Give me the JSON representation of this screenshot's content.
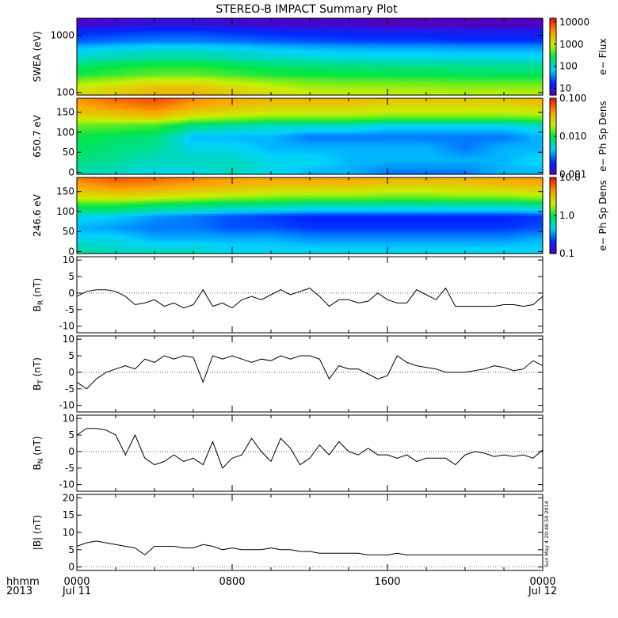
{
  "title": "STEREO-B IMPACT Summary Plot",
  "timestamp": "Sun May  4 20:48:50 2014",
  "x_axis": {
    "row1_label": "hhmm",
    "row2_label": "2013",
    "ticks": [
      {
        "hour": 0,
        "time": "0000",
        "date": "Jul 11"
      },
      {
        "hour": 8,
        "time": "0800",
        "date": ""
      },
      {
        "hour": 16,
        "time": "1600",
        "date": ""
      },
      {
        "hour": 24,
        "time": "0000",
        "date": "Jul 12"
      }
    ],
    "range_hours": [
      0,
      24
    ]
  },
  "colors": {
    "line": "#000000",
    "background": "#ffffff"
  },
  "chart_data": [
    {
      "type": "heatmap",
      "id": "swea",
      "ylabel": "SWEA (eV)",
      "yscale": "log",
      "ylim": [
        90,
        2000
      ],
      "yticks": [
        {
          "v": 100,
          "label": "100"
        },
        {
          "v": 1000,
          "label": "1000"
        }
      ],
      "colorbar": {
        "label": "e− Flux",
        "scale": "log",
        "range": [
          5,
          15000
        ],
        "ticks": [
          {
            "v": 10000,
            "label": "10000"
          },
          {
            "v": 1000,
            "label": "1000"
          },
          {
            "v": 100,
            "label": "100"
          },
          {
            "v": 10,
            "label": "10"
          }
        ]
      },
      "x_hours": [
        0,
        2,
        4,
        6,
        8,
        10,
        12,
        14,
        16,
        18,
        20,
        22,
        24
      ],
      "y_values": [
        100,
        200,
        400,
        800,
        1600
      ],
      "z": [
        [
          1300,
          1800,
          2600,
          2600,
          1800,
          1300,
          1000,
          950,
          950,
          900,
          850,
          850,
          850
        ],
        [
          320,
          420,
          520,
          520,
          420,
          340,
          300,
          280,
          270,
          260,
          250,
          240,
          240
        ],
        [
          110,
          130,
          150,
          150,
          130,
          110,
          100,
          95,
          90,
          90,
          85,
          85,
          85
        ],
        [
          28,
          32,
          36,
          36,
          32,
          28,
          25,
          23,
          22,
          22,
          20,
          20,
          20
        ],
        [
          6,
          7,
          8,
          8,
          7,
          6,
          6,
          6,
          5,
          5,
          5,
          5,
          5
        ]
      ]
    },
    {
      "type": "heatmap",
      "id": "pad650",
      "ylabel": "650.7 eV",
      "yscale": "linear",
      "ylim": [
        -5,
        185
      ],
      "yticks": [
        {
          "v": 0,
          "label": "0"
        },
        {
          "v": 50,
          "label": "50"
        },
        {
          "v": 100,
          "label": "100"
        },
        {
          "v": 150,
          "label": "150"
        }
      ],
      "colorbar": {
        "label": "e− Ph Sp Dens",
        "scale": "log",
        "range": [
          0.001,
          0.1
        ],
        "ticks": [
          {
            "v": 0.1,
            "label": "0.100"
          },
          {
            "v": 0.01,
            "label": "0.010"
          },
          {
            "v": 0.001,
            "label": "0.001"
          }
        ]
      },
      "x_hours": [
        0,
        2,
        4,
        6,
        8,
        10,
        12,
        14,
        16,
        18,
        20,
        22,
        24
      ],
      "y_values": [
        0,
        30,
        60,
        90,
        120,
        150,
        180
      ],
      "z": [
        [
          0.006,
          0.006,
          0.005,
          0.005,
          0.006,
          0.005,
          0.004,
          0.004,
          0.003,
          0.003,
          0.003,
          0.004,
          0.004
        ],
        [
          0.008,
          0.007,
          0.006,
          0.006,
          0.006,
          0.005,
          0.005,
          0.004,
          0.004,
          0.004,
          0.004,
          0.004,
          0.005
        ],
        [
          0.009,
          0.008,
          0.007,
          0.005,
          0.005,
          0.004,
          0.004,
          0.004,
          0.004,
          0.004,
          0.003,
          0.004,
          0.004
        ],
        [
          0.01,
          0.009,
          0.008,
          0.004,
          0.004,
          0.004,
          0.003,
          0.003,
          0.003,
          0.003,
          0.003,
          0.003,
          0.004
        ],
        [
          0.015,
          0.014,
          0.013,
          0.008,
          0.007,
          0.006,
          0.006,
          0.006,
          0.005,
          0.005,
          0.005,
          0.005,
          0.006
        ],
        [
          0.03,
          0.035,
          0.04,
          0.028,
          0.025,
          0.022,
          0.022,
          0.022,
          0.02,
          0.02,
          0.02,
          0.02,
          0.022
        ],
        [
          0.045,
          0.06,
          0.07,
          0.05,
          0.04,
          0.035,
          0.035,
          0.035,
          0.03,
          0.03,
          0.03,
          0.03,
          0.035
        ]
      ]
    },
    {
      "type": "heatmap",
      "id": "pad246",
      "ylabel": "246.6 eV",
      "yscale": "linear",
      "ylim": [
        -5,
        185
      ],
      "yticks": [
        {
          "v": 0,
          "label": "0"
        },
        {
          "v": 50,
          "label": "50"
        },
        {
          "v": 100,
          "label": "100"
        },
        {
          "v": 150,
          "label": "150"
        }
      ],
      "colorbar": {
        "label": "e− Ph Sp Dens",
        "scale": "log",
        "range": [
          0.1,
          10
        ],
        "ticks": [
          {
            "v": 10,
            "label": "10.0"
          },
          {
            "v": 1,
            "label": "1.0"
          },
          {
            "v": 0.1,
            "label": "0.1"
          }
        ]
      },
      "x_hours": [
        0,
        2,
        4,
        6,
        8,
        10,
        12,
        14,
        16,
        18,
        20,
        22,
        24
      ],
      "y_values": [
        0,
        30,
        60,
        90,
        120,
        150,
        180
      ],
      "z": [
        [
          0.7,
          0.6,
          0.6,
          0.6,
          0.5,
          0.5,
          0.5,
          0.5,
          0.5,
          0.5,
          0.5,
          0.5,
          0.5
        ],
        [
          0.5,
          0.5,
          0.4,
          0.4,
          0.4,
          0.4,
          0.35,
          0.35,
          0.35,
          0.35,
          0.35,
          0.35,
          0.4
        ],
        [
          0.4,
          0.35,
          0.3,
          0.3,
          0.25,
          0.25,
          0.22,
          0.22,
          0.22,
          0.22,
          0.22,
          0.22,
          0.25
        ],
        [
          0.5,
          0.45,
          0.35,
          0.3,
          0.25,
          0.22,
          0.2,
          0.2,
          0.2,
          0.2,
          0.2,
          0.2,
          0.22
        ],
        [
          1.2,
          1.2,
          1.0,
          0.9,
          0.8,
          0.8,
          0.7,
          0.7,
          0.7,
          0.7,
          0.7,
          0.7,
          0.8
        ],
        [
          3.0,
          3.5,
          3.2,
          2.8,
          2.5,
          2.2,
          2.2,
          2.2,
          2.0,
          2.0,
          2.2,
          2.2,
          2.5
        ],
        [
          5.0,
          6.5,
          6.0,
          5.0,
          4.5,
          4.0,
          4.0,
          4.0,
          3.5,
          3.5,
          3.5,
          4.0,
          4.5
        ]
      ]
    },
    {
      "type": "line",
      "id": "br",
      "ylabel_main": "B",
      "ylabel_sub": "R",
      "ylabel_unit": " (nT)",
      "ylim": [
        -12,
        11
      ],
      "yticks": [
        {
          "v": -10,
          "label": "-10"
        },
        {
          "v": -5,
          "label": "-5"
        },
        {
          "v": 0,
          "label": "0"
        },
        {
          "v": 5,
          "label": "5"
        },
        {
          "v": 10,
          "label": "10"
        }
      ],
      "x": [
        0,
        0.5,
        1,
        1.5,
        2,
        2.5,
        3,
        3.5,
        4,
        4.5,
        5,
        5.5,
        6,
        6.5,
        7,
        7.5,
        8,
        8.5,
        9,
        9.5,
        10,
        10.5,
        11,
        11.5,
        12,
        12.5,
        13,
        13.5,
        14,
        14.5,
        15,
        15.5,
        16,
        16.5,
        17,
        17.5,
        18,
        18.5,
        19,
        19.5,
        20,
        20.5,
        21,
        21.5,
        22,
        22.5,
        23,
        23.5,
        24
      ],
      "y": [
        -1,
        0.5,
        1,
        1,
        0.5,
        -1,
        -3.5,
        -3,
        -2,
        -4,
        -3,
        -4.5,
        -3.5,
        1,
        -4,
        -3,
        -4.5,
        -2,
        -1,
        -2,
        -0.5,
        1,
        -0.5,
        0.5,
        1.5,
        -1,
        -4,
        -2,
        -2,
        -3,
        -2.5,
        0,
        -2,
        -3,
        -3,
        1,
        -0.5,
        -2,
        1.5,
        -4,
        -4,
        -4,
        -4,
        -4,
        -3.5,
        -3.5,
        -4,
        -3.5,
        -1
      ]
    },
    {
      "type": "line",
      "id": "bt",
      "ylabel_main": "B",
      "ylabel_sub": "T",
      "ylabel_unit": " (nT)",
      "ylim": [
        -12,
        11
      ],
      "yticks": [
        {
          "v": -10,
          "label": "-10"
        },
        {
          "v": -5,
          "label": "-5"
        },
        {
          "v": 0,
          "label": "0"
        },
        {
          "v": 5,
          "label": "5"
        },
        {
          "v": 10,
          "label": "10"
        }
      ],
      "x": [
        0,
        0.5,
        1,
        1.5,
        2,
        2.5,
        3,
        3.5,
        4,
        4.5,
        5,
        5.5,
        6,
        6.5,
        7,
        7.5,
        8,
        8.5,
        9,
        9.5,
        10,
        10.5,
        11,
        11.5,
        12,
        12.5,
        13,
        13.5,
        14,
        14.5,
        15,
        15.5,
        16,
        16.5,
        17,
        17.5,
        18,
        18.5,
        19,
        19.5,
        20,
        20.5,
        21,
        21.5,
        22,
        22.5,
        23,
        23.5,
        24
      ],
      "y": [
        -3,
        -5,
        -2,
        0,
        1,
        2,
        1,
        4,
        3,
        5,
        4,
        5,
        4.5,
        -3,
        5,
        4,
        5,
        4,
        3,
        4,
        3.5,
        5,
        4,
        5,
        5,
        4,
        -2,
        2,
        1,
        1,
        -0.5,
        -2,
        -1,
        5,
        3,
        2,
        1.5,
        1,
        0,
        0,
        0,
        0.5,
        1,
        2,
        1.5,
        0.5,
        1,
        3.5,
        2
      ]
    },
    {
      "type": "line",
      "id": "bn",
      "ylabel_main": "B",
      "ylabel_sub": "N",
      "ylabel_unit": " (nT)",
      "ylim": [
        -12,
        11
      ],
      "yticks": [
        {
          "v": -10,
          "label": "-10"
        },
        {
          "v": -5,
          "label": "-5"
        },
        {
          "v": 0,
          "label": "0"
        },
        {
          "v": 5,
          "label": "5"
        },
        {
          "v": 10,
          "label": "10"
        }
      ],
      "x": [
        0,
        0.5,
        1,
        1.5,
        2,
        2.5,
        3,
        3.5,
        4,
        4.5,
        5,
        5.5,
        6,
        6.5,
        7,
        7.5,
        8,
        8.5,
        9,
        9.5,
        10,
        10.5,
        11,
        11.5,
        12,
        12.5,
        13,
        13.5,
        14,
        14.5,
        15,
        15.5,
        16,
        16.5,
        17,
        17.5,
        18,
        18.5,
        19,
        19.5,
        20,
        20.5,
        21,
        21.5,
        22,
        22.5,
        23,
        23.5,
        24
      ],
      "y": [
        5,
        7,
        7,
        6.5,
        5,
        -1,
        5,
        -2,
        -4,
        -3,
        -1,
        -3,
        -2,
        -4,
        3,
        -5,
        -2,
        -1,
        4,
        0,
        -3,
        4,
        1,
        -4,
        -2,
        2,
        -1,
        3,
        0,
        -1,
        1,
        -1,
        -1,
        -2,
        -1,
        -3,
        -2,
        -2,
        -2,
        -4,
        -1,
        0,
        -0.5,
        -1.5,
        -1,
        -1.5,
        -1,
        -2,
        0.5
      ]
    },
    {
      "type": "line",
      "id": "babs",
      "ylabel_main": "|B| (nT)",
      "ylim": [
        -1,
        21
      ],
      "yticks": [
        {
          "v": 0,
          "label": "0"
        },
        {
          "v": 5,
          "label": "5"
        },
        {
          "v": 10,
          "label": "10"
        },
        {
          "v": 15,
          "label": "15"
        },
        {
          "v": 20,
          "label": "20"
        }
      ],
      "x": [
        0,
        0.5,
        1,
        1.5,
        2,
        2.5,
        3,
        3.5,
        4,
        4.5,
        5,
        5.5,
        6,
        6.5,
        7,
        7.5,
        8,
        8.5,
        9,
        9.5,
        10,
        10.5,
        11,
        11.5,
        12,
        12.5,
        13,
        13.5,
        14,
        14.5,
        15,
        15.5,
        16,
        16.5,
        17,
        17.5,
        18,
        18.5,
        19,
        19.5,
        20,
        20.5,
        21,
        21.5,
        22,
        22.5,
        23,
        23.5,
        24
      ],
      "y": [
        6,
        7,
        7.5,
        7,
        6.5,
        6,
        5.5,
        3.5,
        6,
        6,
        6,
        5.5,
        5.5,
        6.5,
        6,
        5,
        5.5,
        5,
        5,
        5,
        5.5,
        5,
        5,
        4.5,
        4.5,
        4,
        4,
        4,
        4,
        4,
        3.5,
        3.5,
        3.5,
        4,
        3.5,
        3.5,
        3.5,
        3.5,
        3.5,
        3.5,
        3.5,
        3.5,
        3.5,
        3.5,
        3.5,
        3.5,
        3.5,
        3.5,
        3.5
      ]
    }
  ]
}
